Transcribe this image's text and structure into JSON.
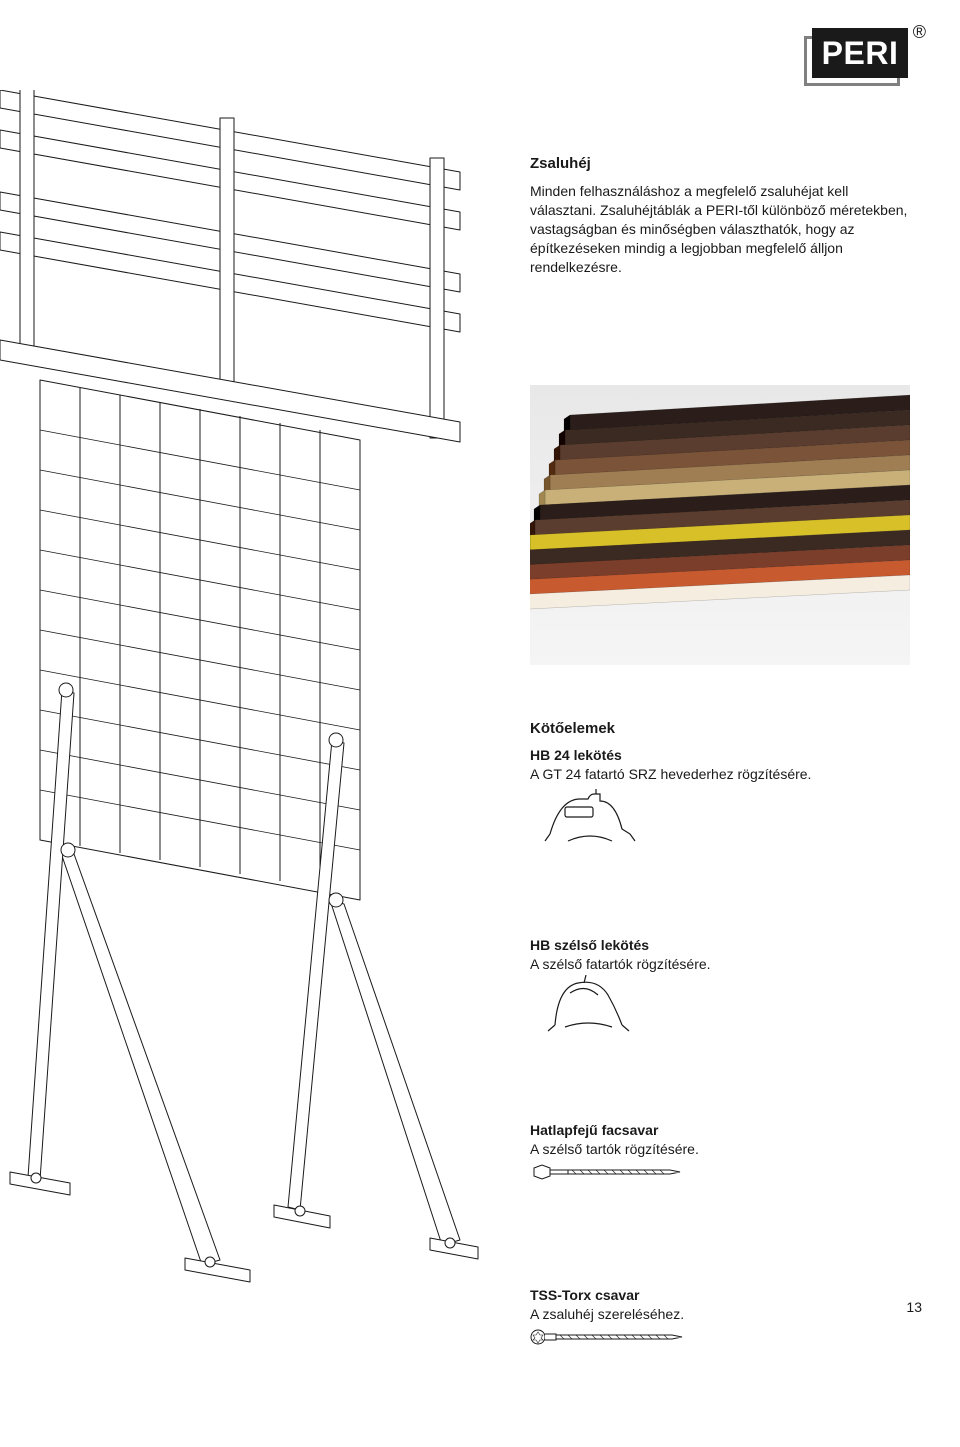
{
  "logo": {
    "text": "PERI",
    "registered": "®"
  },
  "section1": {
    "title": "Zsaluhéj",
    "body": "Minden felhasználáshoz a megfelelő zsaluhéjat kell választani. Zsaluhéjtáblák a PERI-től különböző méretekben, vastagságban és minőségben választhatók, hogy az építkezéseken mindig a legjobban megfelelő álljon rendelkezésre."
  },
  "section2_title": "Kötőelemek",
  "items": [
    {
      "title": "HB 24 lekötés",
      "desc": "A GT 24 fatartó SRZ hevederhez rögzítésére."
    },
    {
      "title": "HB szélső lekötés",
      "desc": "A szélső fatartók rögzítésére."
    },
    {
      "title": "Hatlapfejű facsavar",
      "desc": "A szélső tartók rögzítésére."
    },
    {
      "title": "TSS-Torx csavar",
      "desc": "A zsaluhéj szereléséhez."
    }
  ],
  "plywood_colors": [
    "#2b1e1a",
    "#3a2a22",
    "#5a3d2e",
    "#7a5338",
    "#a07e54",
    "#c8b078",
    "#2b1e1a",
    "#5a3d2e",
    "#d8c028",
    "#3a2a22",
    "#7a3e2a",
    "#c85a30",
    "#f5ede0"
  ],
  "page_number": "13",
  "colors": {
    "text": "#1a1a1a",
    "white": "#ffffff",
    "logo_grey": "#808080",
    "line": "#1a1a1a"
  }
}
